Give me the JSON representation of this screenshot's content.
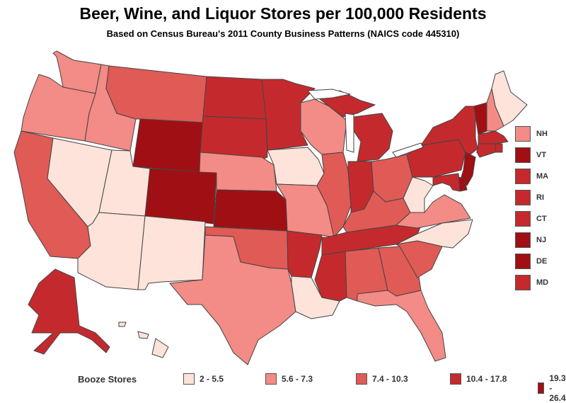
{
  "title": "Beer, Wine, and Liquor Stores per 100,000 Residents",
  "subtitle": "Based on Census Bureau's 2011 County Business Patterns (NAICS code 445310)",
  "colors": {
    "c1": "#fde3da",
    "c2": "#f38b86",
    "c3": "#e05a56",
    "c4": "#c42a2d",
    "c5": "#a00f14",
    "border": "#444444"
  },
  "legend": {
    "title": "Booze Stores",
    "items": [
      {
        "label": "2 - 5.5",
        "color_key": "c1"
      },
      {
        "label": "5.6 - 7.3",
        "color_key": "c2"
      },
      {
        "label": "7.4 - 10.3",
        "color_key": "c3"
      },
      {
        "label": "10.4 - 17.8",
        "color_key": "c4"
      },
      {
        "label": "19.3 - 26.4",
        "color_key": "c5"
      }
    ]
  },
  "northeast_legend": [
    {
      "label": "NH",
      "color_key": "c2"
    },
    {
      "label": "VT",
      "color_key": "c5"
    },
    {
      "label": "MA",
      "color_key": "c4"
    },
    {
      "label": "RI",
      "color_key": "c4"
    },
    {
      "label": "CT",
      "color_key": "c4"
    },
    {
      "label": "NJ",
      "color_key": "c5"
    },
    {
      "label": "DE",
      "color_key": "c5"
    },
    {
      "label": "MD",
      "color_key": "c4"
    }
  ],
  "state_classes": {
    "WA": "c2",
    "OR": "c2",
    "CA": "c3",
    "NV": "c1",
    "ID": "c2",
    "MT": "c3",
    "WY": "c5",
    "UT": "c1",
    "AZ": "c1",
    "CO": "c5",
    "NM": "c1",
    "ND": "c4",
    "SD": "c4",
    "NE": "c2",
    "KS": "c5",
    "OK": "c3",
    "TX": "c2",
    "MN": "c4",
    "IA": "c1",
    "MO": "c2",
    "AR": "c4",
    "LA": "c1",
    "WI": "c2",
    "IL": "c3",
    "MI": "c4",
    "IN": "c4",
    "OH": "c3",
    "KY": "c3",
    "TN": "c4",
    "MS": "c4",
    "AL": "c3",
    "GA": "c3",
    "FL": "c2",
    "SC": "c3",
    "NC": "c1",
    "VA": "c2",
    "WV": "c1",
    "PA": "c4",
    "NY": "c4",
    "ME": "c1",
    "NH": "c2",
    "VT": "c5",
    "MA": "c4",
    "RI": "c4",
    "CT": "c4",
    "NJ": "c5",
    "DE": "c5",
    "MD": "c4",
    "AK": "c4",
    "HI": "c1"
  }
}
